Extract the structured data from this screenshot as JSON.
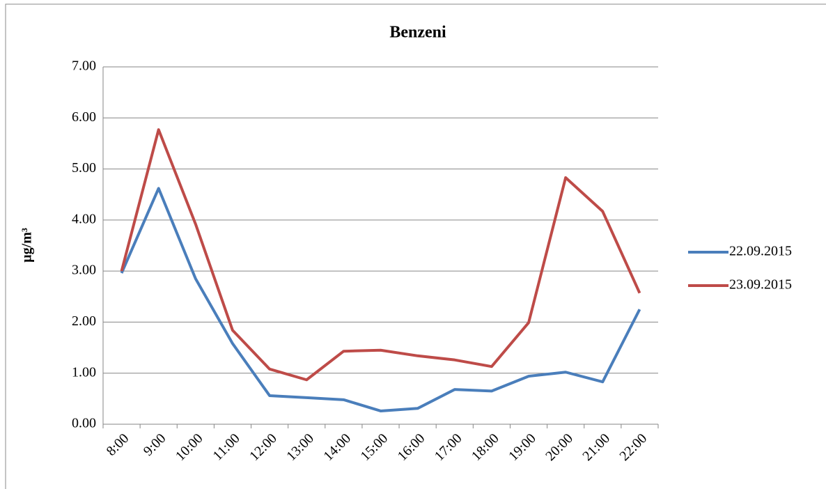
{
  "chart_data": {
    "type": "line",
    "title": "Benzeni",
    "y_label": "µg/m³",
    "categories": [
      "8:00",
      "9:00",
      "10:00",
      "11:00",
      "12:00",
      "13:00",
      "14:00",
      "15:00",
      "16:00",
      "17:00",
      "18:00",
      "19:00",
      "20:00",
      "21:00",
      "22:00"
    ],
    "series": [
      {
        "name": "22.09.2015",
        "color": "#4a7ebb",
        "values": [
          2.96,
          4.62,
          2.85,
          1.58,
          0.56,
          0.52,
          0.48,
          0.26,
          0.31,
          0.68,
          0.65,
          0.94,
          1.02,
          0.83,
          2.25
        ]
      },
      {
        "name": "23.09.2015",
        "color": "#be4b48",
        "values": [
          3.0,
          5.77,
          3.92,
          1.84,
          1.08,
          0.87,
          1.43,
          1.45,
          1.34,
          1.26,
          1.13,
          1.99,
          4.83,
          4.17,
          2.57
        ]
      }
    ],
    "ylim": [
      0,
      7
    ],
    "yticks": [
      {
        "value": 0,
        "label": "0.00"
      },
      {
        "value": 1,
        "label": "1.00"
      },
      {
        "value": 2,
        "label": "2.00"
      },
      {
        "value": 3,
        "label": "3.00"
      },
      {
        "value": 4,
        "label": "4.00"
      },
      {
        "value": 5,
        "label": "5.00"
      },
      {
        "value": 6,
        "label": "6.00"
      },
      {
        "value": 7,
        "label": "7.00"
      }
    ],
    "grid": true,
    "legend": "right"
  }
}
